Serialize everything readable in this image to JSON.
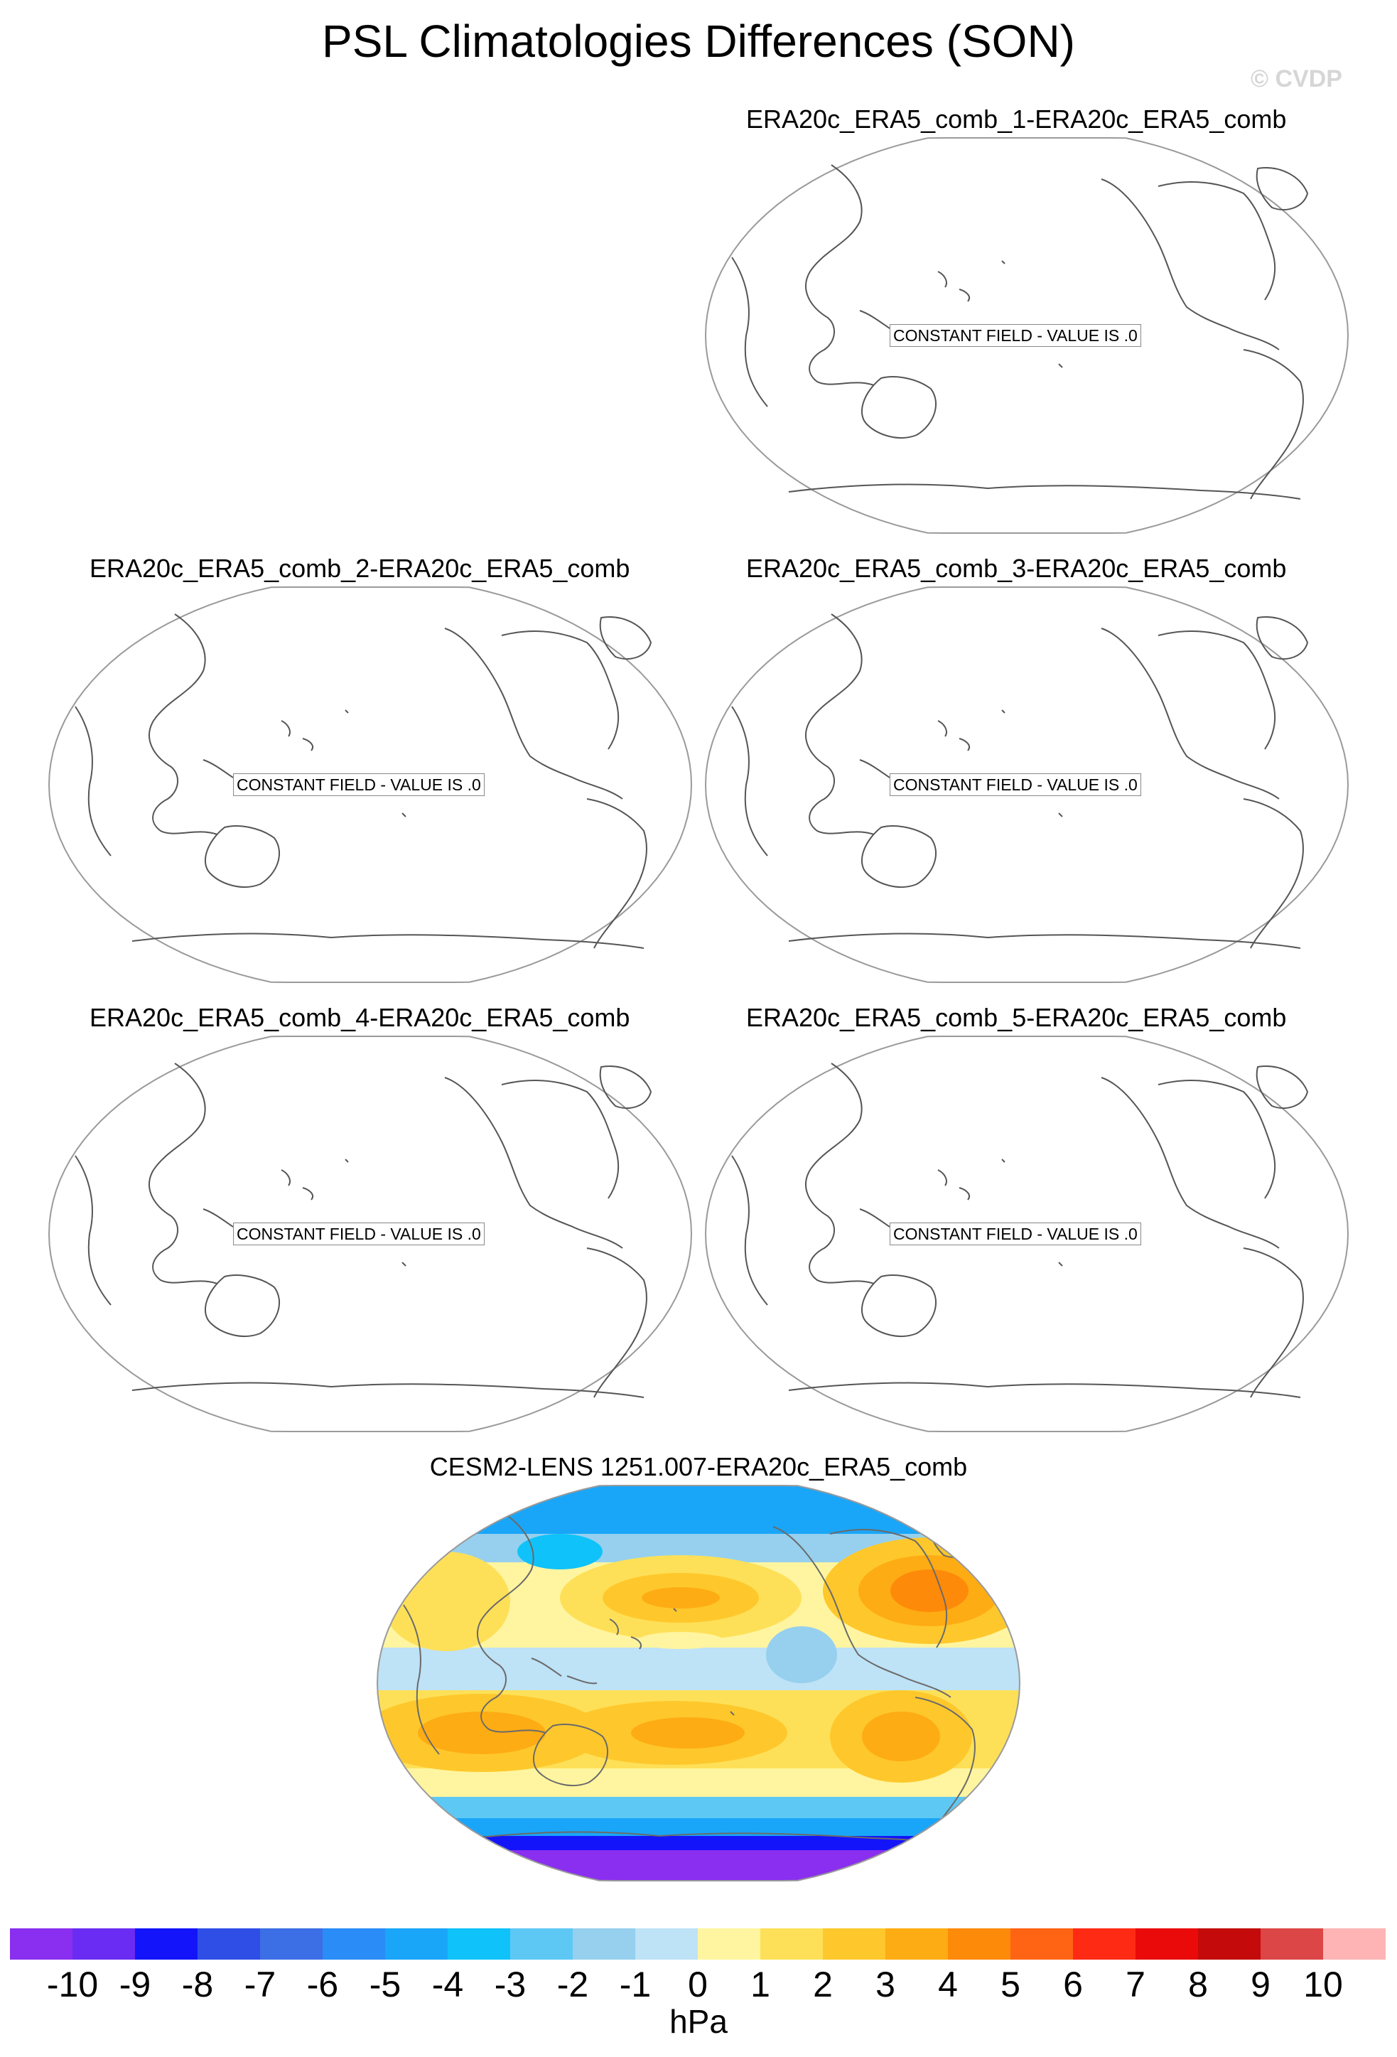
{
  "title": "PSL Climatologies Differences (SON)",
  "watermark": "© CVDP",
  "panels": [
    {
      "title": "ERA20c_ERA5_comb_1-ERA20c_ERA5_comb",
      "message": "CONSTANT FIELD - VALUE IS .0"
    },
    {
      "title": "ERA20c_ERA5_comb_2-ERA20c_ERA5_comb",
      "message": "CONSTANT FIELD - VALUE IS .0"
    },
    {
      "title": "ERA20c_ERA5_comb_3-ERA20c_ERA5_comb",
      "message": "CONSTANT FIELD - VALUE IS .0"
    },
    {
      "title": "ERA20c_ERA5_comb_4-ERA20c_ERA5_comb",
      "message": "CONSTANT FIELD - VALUE IS .0"
    },
    {
      "title": "ERA20c_ERA5_comb_5-ERA20c_ERA5_comb",
      "message": "CONSTANT FIELD - VALUE IS .0"
    },
    {
      "title": "CESM2-LENS 1251.007-ERA20c_ERA5_comb",
      "message": ""
    }
  ],
  "colorbar": {
    "colors": [
      "#8a2ef0",
      "#6a2cf2",
      "#1414fa",
      "#2e4ee6",
      "#3c6ee6",
      "#2a8cf6",
      "#1aa6f8",
      "#10c2fa",
      "#5ec8f4",
      "#96d0ee",
      "#bee2f6",
      "#fff5a0",
      "#fee058",
      "#fec82c",
      "#feac14",
      "#fe8a0a",
      "#fe6414",
      "#fe2a14",
      "#ea0a0a",
      "#c40a0a",
      "#dc4646",
      "#feb4b4"
    ],
    "ticks": [
      "-10",
      "-9",
      "-8",
      "-7",
      "-6",
      "-5",
      "-4",
      "-3",
      "-2",
      "-1",
      "0",
      "1",
      "2",
      "3",
      "4",
      "5",
      "6",
      "7",
      "8",
      "9",
      "10"
    ],
    "units": "hPa"
  }
}
